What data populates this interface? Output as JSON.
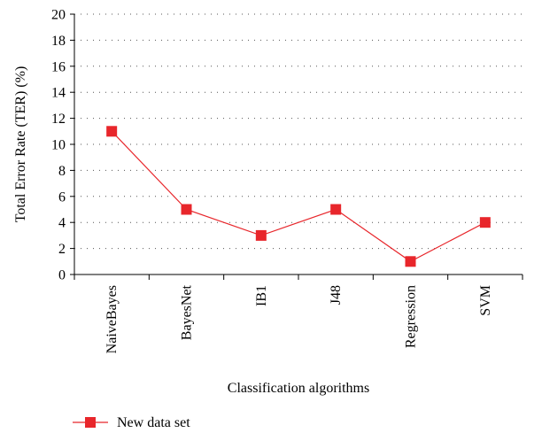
{
  "chart_data": {
    "type": "line",
    "title": "",
    "xlabel": "Classification algorithms",
    "ylabel": "Total Error Rate (TER) (%)",
    "categories": [
      "NaiveBayes",
      "BayesNet",
      "IB1",
      "J48",
      "Regression",
      "SVM"
    ],
    "series": [
      {
        "name": "New data set",
        "values": [
          11,
          5,
          3,
          5,
          1,
          4
        ],
        "color": "#e8262b",
        "marker": "square"
      }
    ],
    "ylim": [
      0,
      20
    ],
    "yticks": [
      0,
      2,
      4,
      6,
      8,
      10,
      12,
      14,
      16,
      18,
      20
    ],
    "grid": "dotted-horizontal",
    "legend": "bottom-left"
  }
}
